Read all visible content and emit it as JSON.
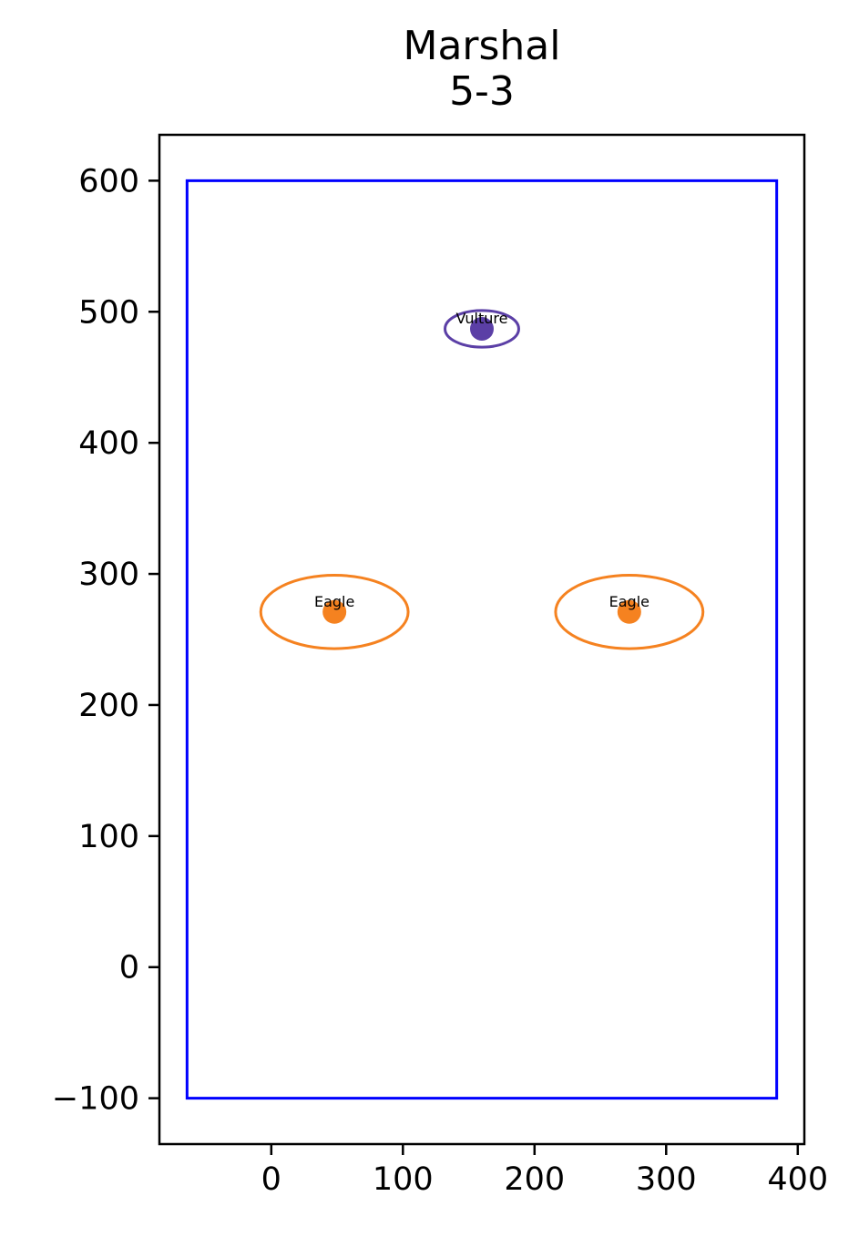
{
  "chart_data": {
    "type": "scatter",
    "title_line1": "Marshal",
    "title_line2": "5-3",
    "xlabel": "",
    "ylabel": "",
    "xlim": [
      -85,
      405
    ],
    "ylim": [
      -135,
      635
    ],
    "x_ticks": [
      0,
      100,
      200,
      300,
      400
    ],
    "y_ticks": [
      600,
      500,
      400,
      300,
      200,
      100,
      0,
      -100
    ],
    "y_tick_labels": [
      "600",
      "500",
      "400",
      "300",
      "200",
      "100",
      "0",
      "−100"
    ],
    "grid": false,
    "boundary": {
      "x0": -64,
      "y0": -100,
      "x1": 384,
      "y1": 600,
      "color": "#0000ff"
    },
    "points": [
      {
        "label": "Vulture",
        "x": 160,
        "y": 487,
        "rx": 28,
        "ry": 14,
        "color": "#5b3fa6"
      },
      {
        "label": "Eagle",
        "x": 48,
        "y": 271,
        "rx": 56,
        "ry": 28,
        "color": "#f58220"
      },
      {
        "label": "Eagle",
        "x": 272,
        "y": 271,
        "rx": 56,
        "ry": 28,
        "color": "#f58220"
      }
    ]
  }
}
